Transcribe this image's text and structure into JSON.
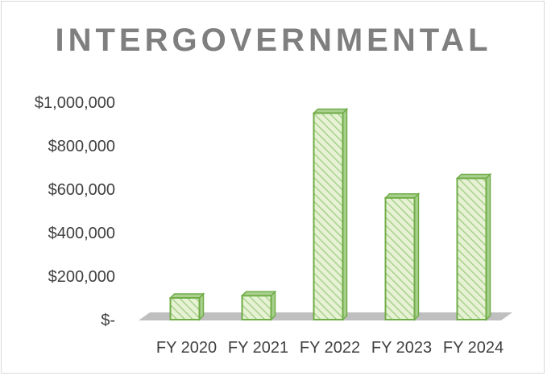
{
  "chart_data": {
    "type": "bar",
    "title": "INTERGOVERNMENTAL",
    "xlabel": "",
    "ylabel": "",
    "categories": [
      "FY 2020",
      "FY 2021",
      "FY 2022",
      "FY 2023",
      "FY 2024"
    ],
    "values": [
      100000,
      110000,
      950000,
      560000,
      650000
    ],
    "ylim": [
      0,
      1000000
    ],
    "y_ticks": [
      0,
      200000,
      400000,
      600000,
      800000,
      1000000
    ],
    "y_tick_labels": [
      "$-",
      "$200,000",
      "$400,000",
      "$600,000",
      "$800,000",
      "$1,000,000"
    ],
    "grid": false,
    "legend": "none",
    "style": "3D columns, light green diagonal hatch with green outline",
    "colors": {
      "bar_fill": "#e6f2d3",
      "bar_hatch": "#a9d08e",
      "bar_edge": "#70ad47",
      "floor": "#bfbfbf",
      "title": "#7f7f7f"
    }
  }
}
